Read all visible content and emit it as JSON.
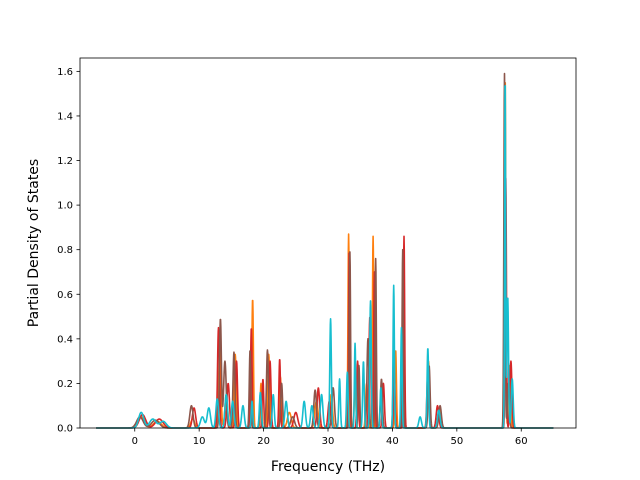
{
  "chart_data": {
    "type": "line",
    "title": "",
    "xlabel": "Frequency (THz)",
    "ylabel": "Partial Density of States",
    "xlim": [
      -8.5,
      68.5
    ],
    "ylim": [
      0.0,
      1.66
    ],
    "xticks": [
      0,
      10,
      20,
      30,
      40,
      50,
      60
    ],
    "yticks": [
      0.0,
      0.2,
      0.4,
      0.6,
      0.8,
      1.0,
      1.2,
      1.4,
      1.6
    ],
    "xtick_labels": [
      "0",
      "10",
      "20",
      "30",
      "40",
      "50",
      "60"
    ],
    "ytick_labels": [
      "0.0",
      "0.2",
      "0.4",
      "0.6",
      "0.8",
      "1.0",
      "1.2",
      "1.4",
      "1.6"
    ],
    "grid": false,
    "legend": "none",
    "x_range": [
      -6,
      65
    ],
    "series": [
      {
        "color": "#ff7f0e",
        "peaks": [
          [
            1.0,
            0.05,
            0.5
          ],
          [
            3.5,
            0.03,
            0.6
          ],
          [
            9.0,
            0.04,
            0.3
          ],
          [
            13.2,
            0.35,
            0.18
          ],
          [
            14.2,
            0.15,
            0.2
          ],
          [
            15.6,
            0.33,
            0.15
          ],
          [
            18.3,
            0.58,
            0.12
          ],
          [
            19.6,
            0.2,
            0.12
          ],
          [
            20.8,
            0.33,
            0.15
          ],
          [
            22.6,
            0.23,
            0.15
          ],
          [
            24.0,
            0.07,
            0.3
          ],
          [
            28.2,
            0.12,
            0.25
          ],
          [
            30.5,
            0.15,
            0.2
          ],
          [
            33.2,
            0.87,
            0.1
          ],
          [
            34.2,
            0.22,
            0.12
          ],
          [
            36.0,
            0.2,
            0.15
          ],
          [
            37.0,
            0.86,
            0.1
          ],
          [
            38.2,
            0.12,
            0.15
          ],
          [
            40.5,
            0.35,
            0.12
          ],
          [
            41.6,
            0.45,
            0.1
          ],
          [
            45.6,
            0.3,
            0.15
          ],
          [
            47.3,
            0.08,
            0.2
          ],
          [
            57.5,
            1.58,
            0.1
          ],
          [
            58.2,
            0.28,
            0.15
          ]
        ]
      },
      {
        "color": "#d62728",
        "peaks": [
          [
            1.2,
            0.06,
            0.5
          ],
          [
            3.8,
            0.04,
            0.6
          ],
          [
            9.2,
            0.09,
            0.25
          ],
          [
            13.0,
            0.45,
            0.15
          ],
          [
            14.5,
            0.2,
            0.2
          ],
          [
            15.8,
            0.3,
            0.15
          ],
          [
            18.1,
            0.45,
            0.12
          ],
          [
            19.9,
            0.22,
            0.12
          ],
          [
            21.0,
            0.3,
            0.15
          ],
          [
            22.5,
            0.31,
            0.12
          ],
          [
            25.0,
            0.07,
            0.3
          ],
          [
            28.5,
            0.18,
            0.2
          ],
          [
            30.2,
            0.12,
            0.2
          ],
          [
            33.3,
            0.8,
            0.1
          ],
          [
            34.6,
            0.3,
            0.12
          ],
          [
            36.5,
            0.5,
            0.15
          ],
          [
            37.2,
            0.7,
            0.1
          ],
          [
            38.6,
            0.2,
            0.15
          ],
          [
            40.3,
            0.25,
            0.12
          ],
          [
            41.8,
            0.86,
            0.1
          ],
          [
            45.5,
            0.25,
            0.15
          ],
          [
            47.0,
            0.1,
            0.2
          ],
          [
            57.6,
            1.12,
            0.1
          ],
          [
            58.4,
            0.3,
            0.15
          ]
        ]
      },
      {
        "color": "#8c564b",
        "peaks": [
          [
            0.8,
            0.05,
            0.5
          ],
          [
            3.2,
            0.035,
            0.6
          ],
          [
            8.8,
            0.1,
            0.25
          ],
          [
            13.3,
            0.49,
            0.15
          ],
          [
            14.0,
            0.3,
            0.2
          ],
          [
            15.4,
            0.34,
            0.15
          ],
          [
            17.9,
            0.35,
            0.12
          ],
          [
            19.5,
            0.15,
            0.12
          ],
          [
            20.6,
            0.35,
            0.15
          ],
          [
            22.8,
            0.2,
            0.15
          ],
          [
            24.5,
            0.05,
            0.3
          ],
          [
            28.0,
            0.17,
            0.2
          ],
          [
            30.8,
            0.18,
            0.2
          ],
          [
            33.4,
            0.79,
            0.1
          ],
          [
            34.8,
            0.28,
            0.12
          ],
          [
            36.2,
            0.4,
            0.15
          ],
          [
            37.4,
            0.76,
            0.1
          ],
          [
            38.3,
            0.22,
            0.15
          ],
          [
            40.2,
            0.3,
            0.12
          ],
          [
            41.6,
            0.8,
            0.1
          ],
          [
            45.7,
            0.28,
            0.15
          ],
          [
            47.4,
            0.1,
            0.2
          ],
          [
            57.4,
            1.59,
            0.1
          ],
          [
            58.0,
            0.2,
            0.15
          ]
        ]
      },
      {
        "color": "#17becf",
        "peaks": [
          [
            1.0,
            0.07,
            0.4
          ],
          [
            2.8,
            0.04,
            0.5
          ],
          [
            4.4,
            0.03,
            0.5
          ],
          [
            10.5,
            0.05,
            0.3
          ],
          [
            11.5,
            0.09,
            0.25
          ],
          [
            12.8,
            0.13,
            0.2
          ],
          [
            14.2,
            0.15,
            0.2
          ],
          [
            15.2,
            0.12,
            0.2
          ],
          [
            16.8,
            0.1,
            0.2
          ],
          [
            18.2,
            0.12,
            0.12
          ],
          [
            19.5,
            0.16,
            0.15
          ],
          [
            21.5,
            0.15,
            0.15
          ],
          [
            23.5,
            0.12,
            0.2
          ],
          [
            26.3,
            0.12,
            0.2
          ],
          [
            27.5,
            0.1,
            0.2
          ],
          [
            29.0,
            0.15,
            0.2
          ],
          [
            30.4,
            0.49,
            0.12
          ],
          [
            31.8,
            0.22,
            0.12
          ],
          [
            33.0,
            0.25,
            0.12
          ],
          [
            34.2,
            0.38,
            0.1
          ],
          [
            35.5,
            0.3,
            0.12
          ],
          [
            36.6,
            0.57,
            0.12
          ],
          [
            38.2,
            0.18,
            0.12
          ],
          [
            40.2,
            0.64,
            0.1
          ],
          [
            41.4,
            0.45,
            0.1
          ],
          [
            44.3,
            0.05,
            0.2
          ],
          [
            45.5,
            0.36,
            0.12
          ],
          [
            47.2,
            0.08,
            0.2
          ],
          [
            57.5,
            1.58,
            0.08
          ],
          [
            57.9,
            0.59,
            0.12
          ],
          [
            58.6,
            0.22,
            0.15
          ]
        ]
      }
    ]
  }
}
